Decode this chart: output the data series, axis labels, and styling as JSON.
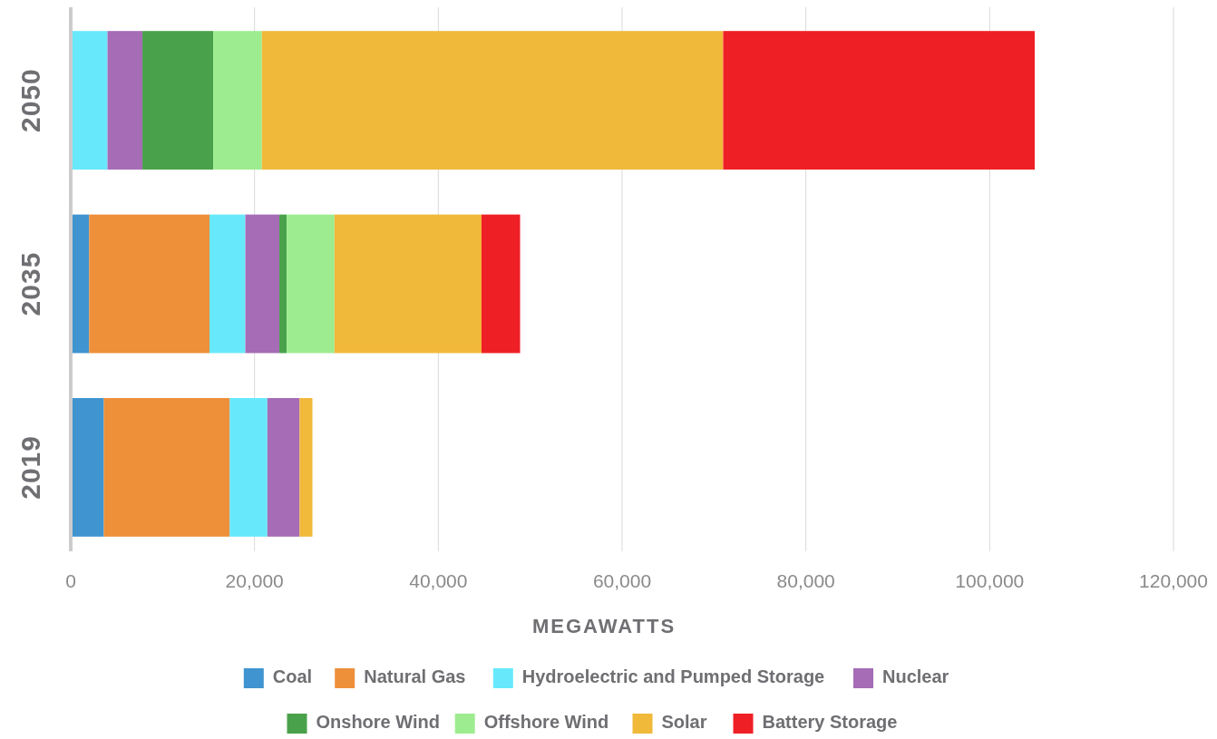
{
  "chart_data": {
    "type": "bar",
    "orientation": "horizontal",
    "stacked": true,
    "categories": [
      "2050",
      "2035",
      "2019"
    ],
    "xlabel": "MEGAWATTS",
    "xlim": [
      0,
      120000
    ],
    "xticks": [
      {
        "value": 0,
        "label": "0"
      },
      {
        "value": 20000,
        "label": "20,000"
      },
      {
        "value": 40000,
        "label": "40,000"
      },
      {
        "value": 60000,
        "label": "60,000"
      },
      {
        "value": 80000,
        "label": "80,000"
      },
      {
        "value": 100000,
        "label": "100,000"
      },
      {
        "value": 120000,
        "label": "120,000"
      }
    ],
    "grid": "x",
    "legend": "bottom",
    "series": [
      {
        "name": "Coal",
        "color": "#4094d0",
        "values": [
          0,
          2000,
          3600
        ]
      },
      {
        "name": "Natural Gas",
        "color": "#ee8f3a",
        "values": [
          0,
          13100,
          13700
        ]
      },
      {
        "name": "Hydroelectric and Pumped Storage",
        "color": "#67e9fb",
        "values": [
          4000,
          3900,
          4100
        ]
      },
      {
        "name": "Nuclear",
        "color": "#a66cb6",
        "values": [
          3800,
          3700,
          3500
        ]
      },
      {
        "name": "Onshore Wind",
        "color": "#49a24b",
        "values": [
          7700,
          800,
          0
        ]
      },
      {
        "name": "Offshore Wind",
        "color": "#9eec90",
        "values": [
          5300,
          5200,
          0
        ]
      },
      {
        "name": "Solar",
        "color": "#f0b93a",
        "values": [
          50200,
          16000,
          1400
        ]
      },
      {
        "name": "Battery Storage",
        "color": "#ef2025",
        "values": [
          33900,
          4200,
          0
        ]
      }
    ]
  }
}
